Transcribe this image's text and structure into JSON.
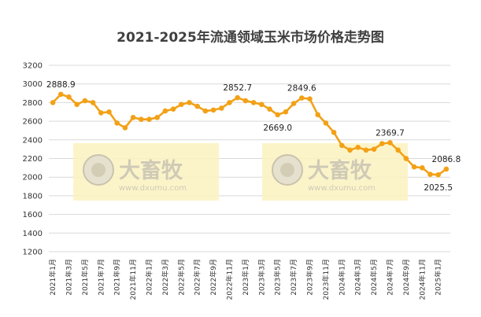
{
  "chart_data": {
    "type": "line",
    "title": "2021-2025年流通领域玉米市场价格走势图",
    "xlabel": "",
    "ylabel": "",
    "ylim": [
      1200,
      3200
    ],
    "yticks": [
      1200,
      1400,
      1600,
      1800,
      2000,
      2200,
      2400,
      2600,
      2800,
      3000,
      3200
    ],
    "grid": true,
    "legend": "none",
    "x_tick_labels": [
      "2021年1月",
      "2021年3月",
      "2021年5月",
      "2021年7月",
      "2021年9月",
      "2021年11月",
      "2022年1月",
      "2022年3月",
      "2022年5月",
      "2022年7月",
      "2022年9月",
      "2022年11月",
      "2023年1月",
      "2023年3月",
      "2023年5月",
      "2023年7月",
      "2023年9月",
      "2023年11月",
      "2024年1月",
      "2024年3月",
      "2024年5月",
      "2024年7月",
      "2024年9月",
      "2024年11月",
      "2025年1月"
    ],
    "series": [
      {
        "color": "#f2a117",
        "values": [
          2800,
          2888.9,
          2860,
          2780,
          2820,
          2800,
          2690,
          2700,
          2580,
          2530,
          2640,
          2620,
          2620,
          2640,
          2710,
          2730,
          2780,
          2800,
          2760,
          2710,
          2720,
          2740,
          2800,
          2852.7,
          2820,
          2800,
          2780,
          2730,
          2669.0,
          2700,
          2790,
          2849.6,
          2840,
          2670,
          2580,
          2480,
          2340,
          2290,
          2320,
          2290,
          2300,
          2360,
          2369.7,
          2290,
          2200,
          2110,
          2100,
          2030,
          2025.5,
          2086.8
        ]
      }
    ],
    "annotations": [
      {
        "index": 1,
        "text": "2888.9",
        "pos": "above"
      },
      {
        "index": 23,
        "text": "2852.7",
        "pos": "above"
      },
      {
        "index": 28,
        "text": "2669.0",
        "pos": "below"
      },
      {
        "index": 31,
        "text": "2849.6",
        "pos": "above"
      },
      {
        "index": 42,
        "text": "2369.7",
        "pos": "above"
      },
      {
        "index": 48,
        "text": "2025.5",
        "pos": "below"
      },
      {
        "index": 49,
        "text": "2086.8",
        "pos": "above"
      }
    ]
  },
  "watermark": {
    "brand": "大畜牧",
    "url": "www.dxumu.com"
  },
  "colors": {
    "line": "#f2a117",
    "grid": "#d9d9d9",
    "watermark_bg": "#fbf2bf",
    "title": "#404040"
  }
}
